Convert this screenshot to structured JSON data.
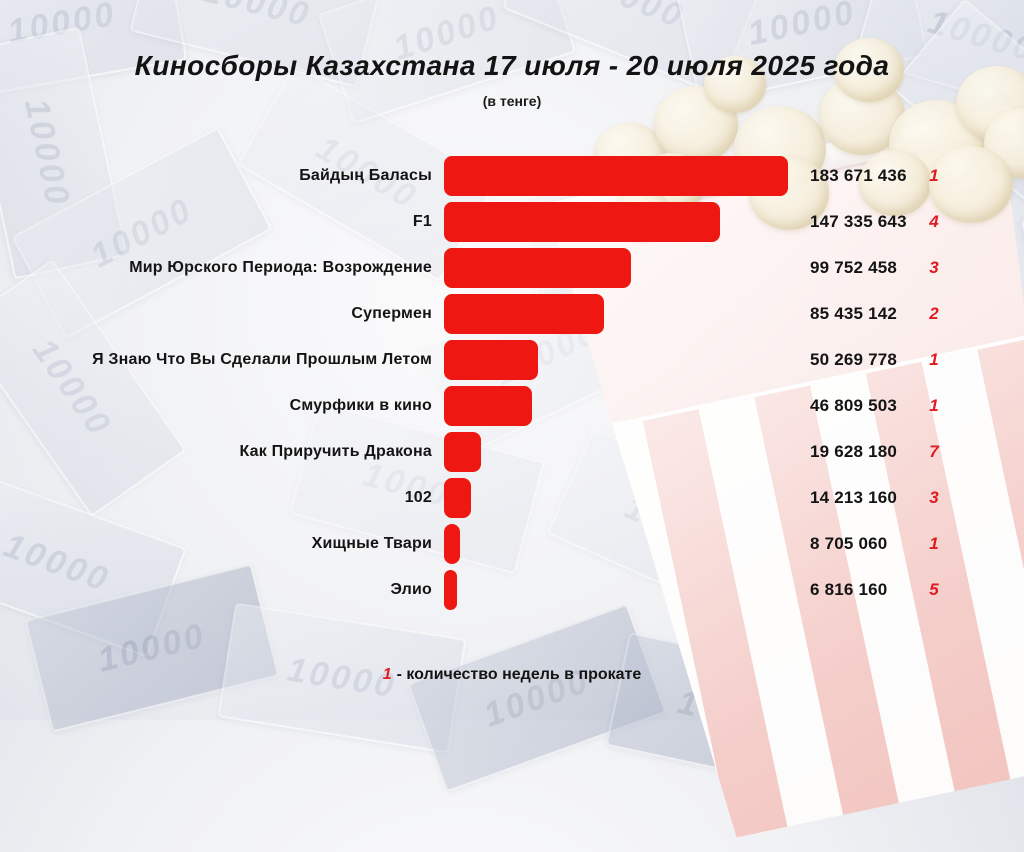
{
  "title": "Киносборы Казахстана 17 июля - 20 июля 2025 года",
  "subtitle": "(в тенге)",
  "footnote": {
    "marker": "1",
    "text": "- количество недель в прокате"
  },
  "background": {
    "banknote_text": "10000",
    "scene": "washed-out kazakh tenge banknotes collage with red-white striped popcorn bucket"
  },
  "colors": {
    "bar_red": "#ee1711",
    "week_number_red": "#e01b22",
    "text_black": "#141414"
  },
  "chart_data": {
    "type": "bar",
    "orientation": "horizontal",
    "title": "Киносборы Казахстана 17 июля - 20 июля 2025 года",
    "subtitle": "(в тенге)",
    "unit": "тенге",
    "xlim": [
      0,
      183671436
    ],
    "grid": false,
    "legend_position": "none",
    "categories": [
      "Байдың Баласы",
      "F1",
      "Мир Юрского Периода: Возрождение",
      "Супермен",
      "Я Знаю Что Вы Сделали Прошлым Летом",
      "Смурфики в кино",
      "Как Приручить Дракона",
      "102",
      "Хищные Твари",
      "Элио"
    ],
    "values": [
      183671436,
      147335643,
      99752458,
      85435142,
      50269778,
      46809503,
      19628180,
      14213160,
      8705060,
      6816160
    ],
    "value_labels": [
      "183 671 436",
      "147 335 643",
      "99 752 458",
      "85 435 142",
      "50 269 778",
      "46 809 503",
      "19 628 180",
      "14 213 160",
      "8 705 060",
      "6 816 160"
    ],
    "weeks_in_release": [
      "1",
      "4",
      "3",
      "2",
      "1",
      "1",
      "7",
      "3",
      "1",
      "5"
    ],
    "annotation": "1 - количество недель в прокате"
  }
}
